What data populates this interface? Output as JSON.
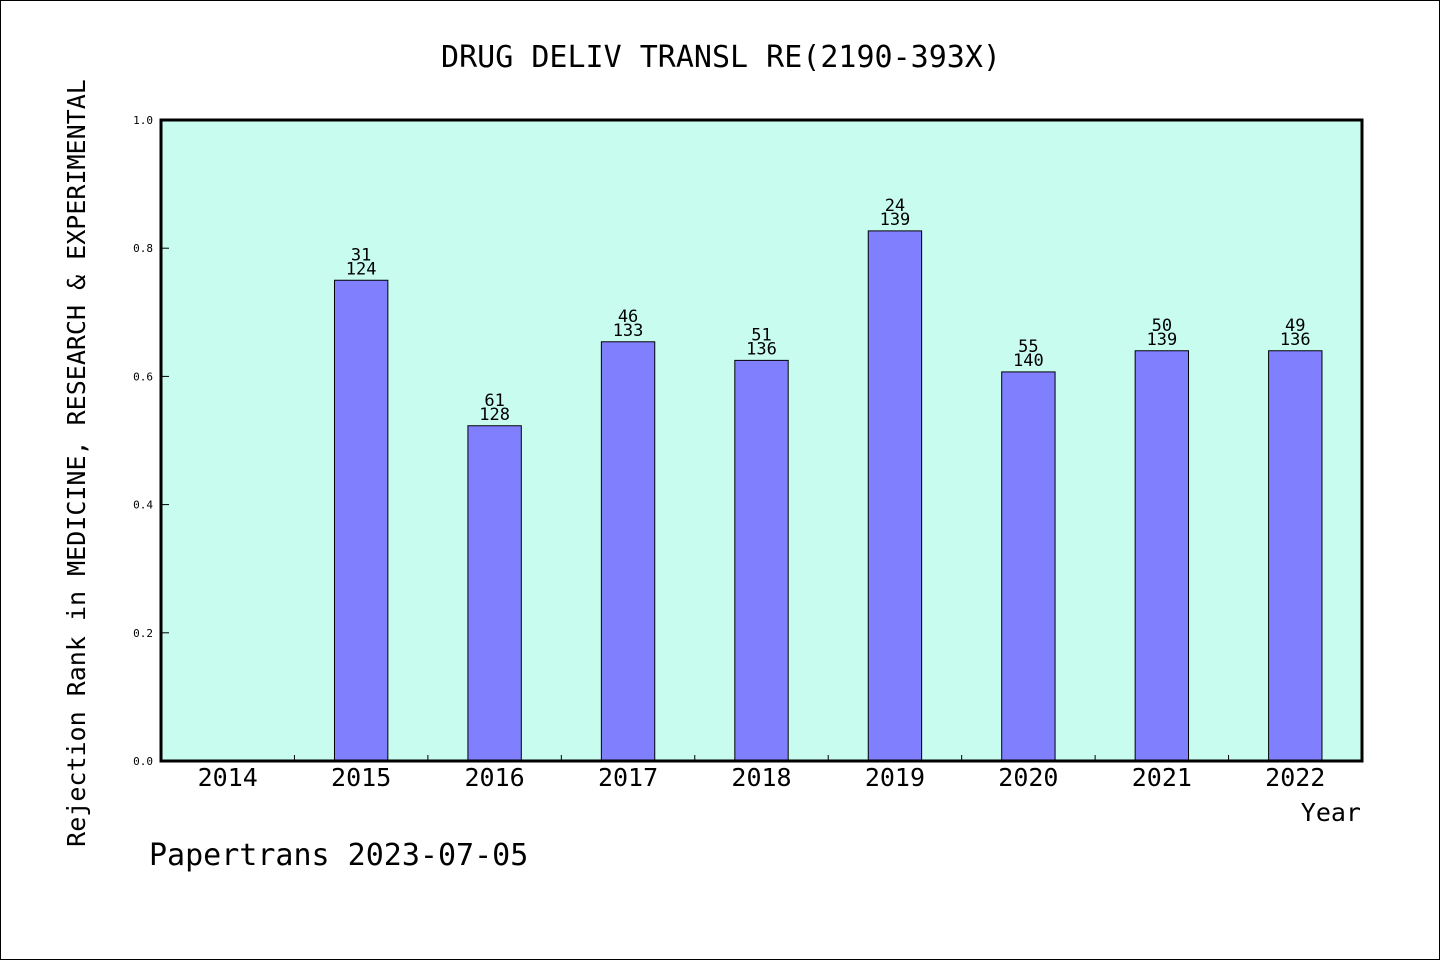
{
  "chart_data": {
    "type": "bar",
    "title": "DRUG DELIV TRANSL RE(2190-393X)",
    "xlabel": "Year",
    "ylabel": "Rejection Rank in MEDICINE, RESEARCH & EXPERIMENTAL",
    "ylim": [
      0,
      1.0
    ],
    "yticks": [
      "0.0",
      "0.2",
      "0.4",
      "0.6",
      "0.8",
      "1.0"
    ],
    "categories": [
      "2014",
      "2015",
      "2016",
      "2017",
      "2018",
      "2019",
      "2020",
      "2021",
      "2022"
    ],
    "values": [
      null,
      0.75,
      0.523,
      0.654,
      0.625,
      0.827,
      0.607,
      0.64,
      0.64
    ],
    "rank": [
      null,
      "31",
      "61",
      "46",
      "51",
      "24",
      "55",
      "50",
      "49"
    ],
    "total": [
      null,
      "124",
      "128",
      "133",
      "136",
      "139",
      "140",
      "139",
      "136"
    ],
    "grid": false,
    "colors": {
      "plot_background": "#c8fcee",
      "bar_fill": "#8080ff",
      "bar_stroke": "#000000"
    }
  },
  "footer": {
    "watermark": "Papertrans 2023-07-05"
  }
}
